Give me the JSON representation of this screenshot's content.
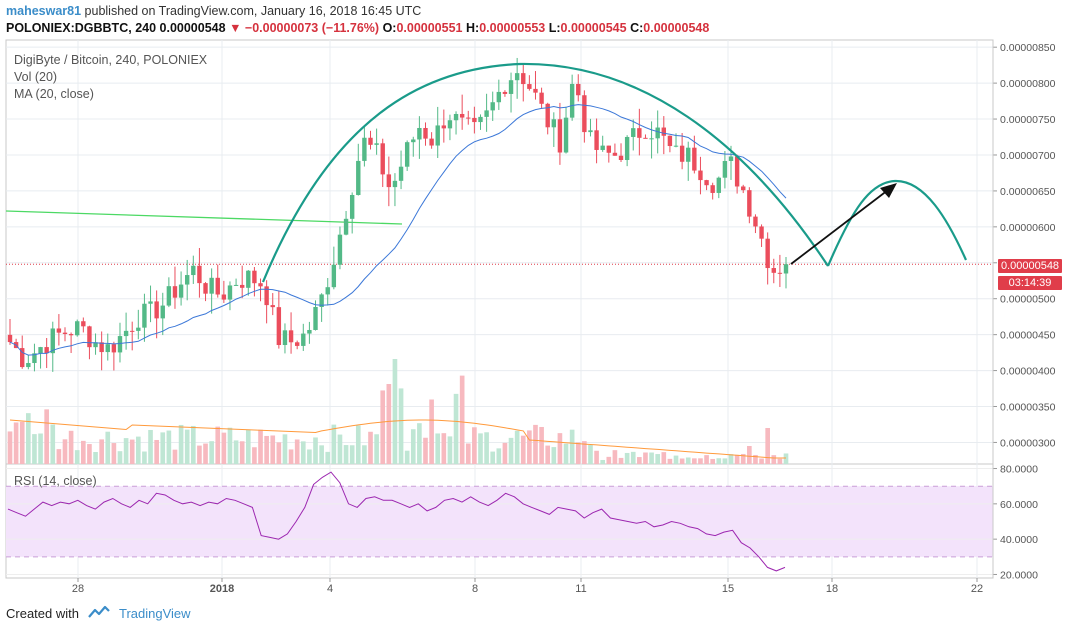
{
  "header": {
    "user": "maheswar81",
    "published": "published on TradingView.com, January 16, 2018 16:45 UTC",
    "symbol": "POLONIEX:DGBBTC",
    "interval": "240",
    "last": "0.00000548",
    "change_icon": "down-triangle-icon",
    "change": "−0.00000073 (−11.76%)",
    "open_label": "O:",
    "open": "0.00000551",
    "high_label": "H:",
    "high": "0.00000553",
    "low_label": "L:",
    "low": "0.00000545",
    "close_label": "C:",
    "close": "0.00000548"
  },
  "legend": {
    "title": "DigiByte / Bitcoin, 240, POLONIEX",
    "vol": "Vol (20)",
    "ma": "MA (20, close)",
    "rsi": "RSI (14, close)"
  },
  "price_tags": {
    "last_price": "0.00000548",
    "countdown": "03:14:39"
  },
  "footer": {
    "created_with": "Created with",
    "brand": "TradingView",
    "brand_icon": "tradingview-logo-icon"
  },
  "colors": {
    "up": "#53b987",
    "down": "#eb4d5c",
    "vol_up": "#bfe6d4",
    "vol_down": "#f7b9bf",
    "ma_line": "#3c78d8",
    "vol_ma": "#ff9a3c",
    "hline_green": "#4cd964",
    "arc": "#1a9b8a",
    "rsi_line": "#9c27b0",
    "rsi_band": "#f3e3fb",
    "last_price_line": "#e03d4a"
  },
  "chart_data": [
    {
      "type": "candlestick",
      "title": "DigiByte / Bitcoin, 240, POLONIEX",
      "x_ticks": [
        "28",
        "2018",
        "4",
        "8",
        "11",
        "15",
        "18",
        "22"
      ],
      "y_ticks": [
        "0.00000850",
        "0.00000800",
        "0.00000750",
        "0.00000700",
        "0.00000650",
        "0.00000600",
        "0.00000550",
        "0.00000500",
        "0.00000450",
        "0.00000400",
        "0.00000350",
        "0.00000300"
      ],
      "ylim": [
        2.7e-06,
        8.6e-06
      ],
      "close_path": [
        4.4e-06,
        4.15e-06,
        4.3e-06,
        4.45e-06,
        4.55e-06,
        4.6e-06,
        4.4e-06,
        4.3e-06,
        4.5e-06,
        4.75e-06,
        4.8e-06,
        4.95e-06,
        5.2e-06,
        5.4e-06,
        5.15e-06,
        5.05e-06,
        5.25e-06,
        5.3e-06,
        5.2e-06,
        4.45e-06,
        4.4e-06,
        4.5e-06,
        4.95e-06,
        5.6e-06,
        6.4e-06,
        7.2e-06,
        7e-06,
        6.5e-06,
        7e-06,
        7.4e-06,
        7.2e-06,
        7.6e-06,
        7.4e-06,
        7.3e-06,
        7.6e-06,
        8e-06,
        8.2e-06,
        7.9e-06,
        7.5e-06,
        7.2e-06,
        8.1e-06,
        7.2e-06,
        7e-06,
        7e-06,
        7.2e-06,
        7.4e-06,
        7.3e-06,
        7e-06,
        7e-06,
        6.8e-06,
        6.6e-06,
        6.9e-06,
        6.5e-06,
        6e-06,
        5.4e-06,
        5.48e-06
      ],
      "last": 5.48e-06,
      "annotations": [
        "rounded-top arc",
        "projected arc",
        "arrow up-right",
        "horizontal green line",
        "last price dotted line"
      ]
    },
    {
      "type": "bar",
      "series": [
        {
          "name": "Vol (20)"
        }
      ],
      "note": "volume bars with orange moving average"
    },
    {
      "type": "line",
      "title": "RSI (14, close)",
      "y_ticks": [
        "80.0000",
        "60.0000",
        "40.0000",
        "20.0000"
      ],
      "ylim": [
        18,
        82
      ],
      "band": [
        30,
        70
      ],
      "values": [
        57,
        55,
        53,
        57,
        61,
        59,
        61,
        60,
        62,
        59,
        57,
        61,
        63,
        60,
        58,
        62,
        60,
        66,
        65,
        62,
        60,
        61,
        59,
        61,
        60,
        63,
        62,
        60,
        58,
        42,
        41,
        40,
        43,
        50,
        58,
        71,
        75,
        78,
        72,
        60,
        58,
        63,
        64,
        62,
        62,
        60,
        58,
        60,
        56,
        58,
        62,
        63,
        61,
        64,
        61,
        59,
        62,
        66,
        64,
        60,
        58,
        56,
        54,
        58,
        57,
        56,
        52,
        55,
        57,
        52,
        51,
        50,
        49,
        50,
        47,
        48,
        50,
        49,
        47,
        46,
        43,
        42,
        44,
        45,
        38,
        35,
        30,
        24,
        22,
        24
      ]
    }
  ]
}
